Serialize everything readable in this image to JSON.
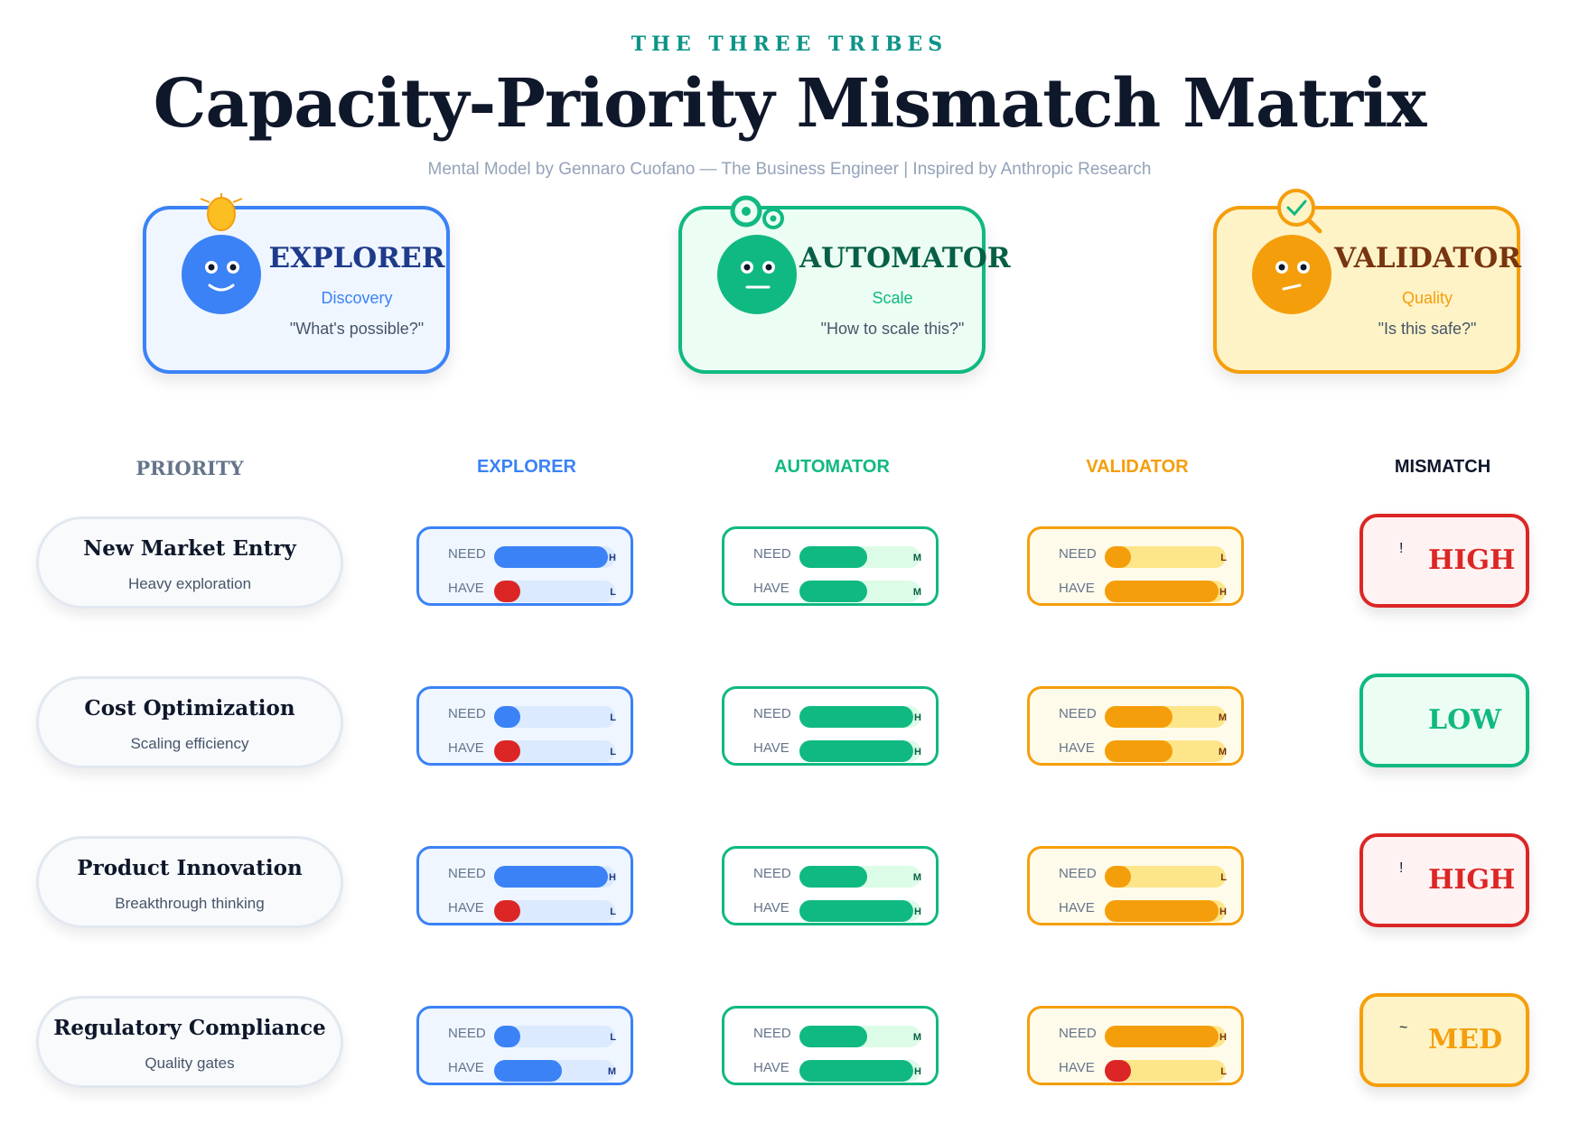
{
  "header": {
    "eyebrow": "THE THREE TRIBES",
    "title": "Capacity-Priority Mismatch Matrix",
    "subtitle": "Mental Model by Gennaro Cuofano — The Business Engineer | Inspired by Anthropic Research"
  },
  "colors": {
    "explorer": "#3b82f6",
    "automator": "#10b981",
    "validator": "#f59e0b",
    "high": "#dc2626",
    "low": "#10b981",
    "med": "#f59e0b"
  },
  "tribes": [
    {
      "name": "EXPLORER",
      "focus": "Discovery",
      "question": "\"What's possible?\"",
      "icon": "lightbulb-icon"
    },
    {
      "name": "AUTOMATOR",
      "focus": "Scale",
      "question": "\"How to scale this?\"",
      "icon": "gear-icon"
    },
    {
      "name": "VALIDATOR",
      "focus": "Quality",
      "question": "\"Is this safe?\"",
      "icon": "magnifier-check-icon"
    }
  ],
  "columns": {
    "priority": "PRIORITY",
    "explorer": "EXPLORER",
    "automator": "AUTOMATOR",
    "validator": "VALIDATOR",
    "mismatch": "MISMATCH"
  },
  "labels": {
    "need": "NEED",
    "have": "HAVE"
  },
  "rows": [
    {
      "priority": "New Market Entry",
      "desc": "Heavy exploration",
      "explorer": {
        "need": "H",
        "have": "L"
      },
      "automator": {
        "need": "M",
        "have": "M"
      },
      "validator": {
        "need": "L",
        "have": "H"
      },
      "mismatch": "HIGH"
    },
    {
      "priority": "Cost Optimization",
      "desc": "Scaling efficiency",
      "explorer": {
        "need": "L",
        "have": "L"
      },
      "automator": {
        "need": "H",
        "have": "H"
      },
      "validator": {
        "need": "M",
        "have": "M"
      },
      "mismatch": "LOW"
    },
    {
      "priority": "Product Innovation",
      "desc": "Breakthrough thinking",
      "explorer": {
        "need": "H",
        "have": "L"
      },
      "automator": {
        "need": "M",
        "have": "H"
      },
      "validator": {
        "need": "L",
        "have": "H"
      },
      "mismatch": "HIGH"
    },
    {
      "priority": "Regulatory Compliance",
      "desc": "Quality gates",
      "explorer": {
        "need": "L",
        "have": "M"
      },
      "automator": {
        "need": "M",
        "have": "H"
      },
      "validator": {
        "need": "H",
        "have": "L"
      },
      "mismatch": "MED"
    }
  ]
}
